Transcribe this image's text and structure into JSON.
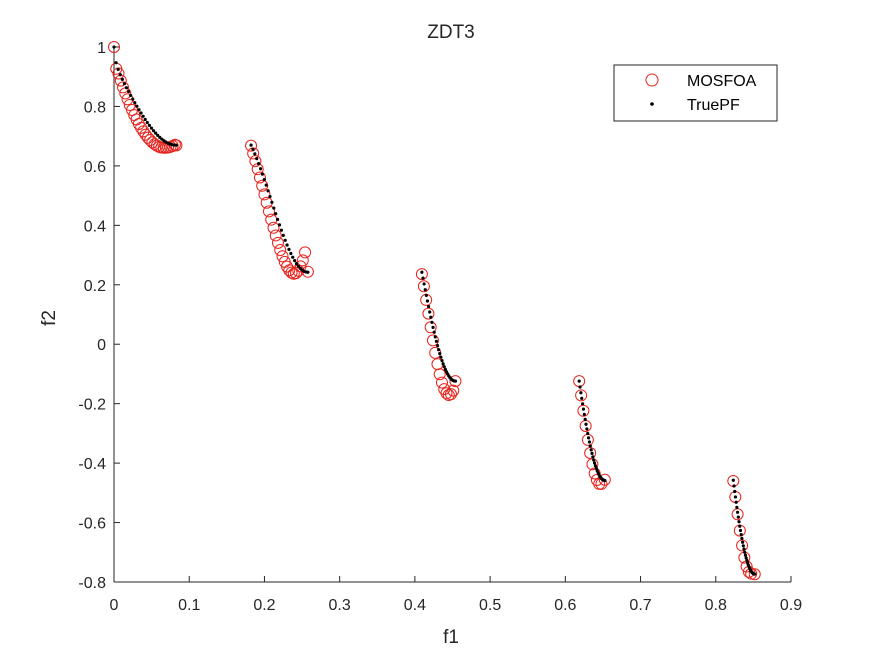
{
  "chart_data": {
    "type": "scatter",
    "title": "ZDT3",
    "xlabel": "f1",
    "ylabel": "f2",
    "xlim": [
      0,
      0.9
    ],
    "ylim": [
      -0.8,
      1
    ],
    "xticks": [
      0,
      0.1,
      0.2,
      0.3,
      0.4,
      0.5,
      0.6,
      0.7,
      0.8,
      0.9
    ],
    "xtick_labels": [
      "0",
      "0.1",
      "0.2",
      "0.3",
      "0.4",
      "0.5",
      "0.6",
      "0.7",
      "0.8",
      "0.9"
    ],
    "yticks": [
      -0.8,
      -0.6,
      -0.4,
      -0.2,
      0,
      0.2,
      0.4,
      0.6,
      0.8,
      1
    ],
    "ytick_labels": [
      "-0.8",
      "-0.6",
      "-0.4",
      "-0.2",
      "0",
      "0.2",
      "0.4",
      "0.6",
      "0.8",
      "1"
    ],
    "grid": false,
    "legend_position": "top-right",
    "segments": [
      [
        0,
        0.083
      ],
      [
        0.1822,
        0.2578
      ],
      [
        0.4093,
        0.4539
      ],
      [
        0.6184,
        0.6525
      ],
      [
        0.8233,
        0.8518
      ]
    ],
    "series": [
      {
        "name": "MOSFOA",
        "marker": "open-circle",
        "color": "#e8221c",
        "x": [
          0,
          0.003,
          0.006,
          0.009,
          0.012,
          0.015,
          0.018,
          0.021,
          0.024,
          0.027,
          0.03,
          0.033,
          0.036,
          0.039,
          0.042,
          0.045,
          0.048,
          0.051,
          0.054,
          0.057,
          0.06,
          0.063,
          0.066,
          0.069,
          0.072,
          0.075,
          0.078,
          0.081,
          0.083,
          0.1822,
          0.185,
          0.188,
          0.191,
          0.194,
          0.197,
          0.2,
          0.203,
          0.206,
          0.209,
          0.212,
          0.215,
          0.218,
          0.221,
          0.224,
          0.227,
          0.23,
          0.233,
          0.236,
          0.239,
          0.242,
          0.245,
          0.248,
          0.251,
          0.254,
          0.2578,
          0.4093,
          0.412,
          0.415,
          0.418,
          0.421,
          0.424,
          0.427,
          0.43,
          0.433,
          0.436,
          0.439,
          0.442,
          0.445,
          0.448,
          0.451,
          0.4539,
          0.6184,
          0.621,
          0.624,
          0.627,
          0.63,
          0.633,
          0.636,
          0.639,
          0.642,
          0.645,
          0.648,
          0.6525,
          0.8233,
          0.826,
          0.829,
          0.832,
          0.835,
          0.838,
          0.841,
          0.844,
          0.847,
          0.8518
        ],
        "y": [
          1.0,
          0.927,
          0.911,
          0.887,
          0.864,
          0.844,
          0.824,
          0.805,
          0.788,
          0.771,
          0.756,
          0.741,
          0.728,
          0.716,
          0.705,
          0.695,
          0.687,
          0.679,
          0.673,
          0.668,
          0.664,
          0.662,
          0.661,
          0.661,
          0.662,
          0.664,
          0.667,
          0.671,
          0.669,
          0.668,
          0.642,
          0.616,
          0.589,
          0.561,
          0.533,
          0.504,
          0.476,
          0.447,
          0.419,
          0.392,
          0.366,
          0.341,
          0.317,
          0.296,
          0.277,
          0.261,
          0.249,
          0.241,
          0.237,
          0.239,
          0.247,
          0.262,
          0.282,
          0.309,
          0.244,
          0.236,
          0.195,
          0.149,
          0.103,
          0.057,
          0.013,
          -0.029,
          -0.067,
          -0.101,
          -0.129,
          -0.151,
          -0.165,
          -0.171,
          -0.168,
          -0.156,
          -0.124,
          -0.124,
          -0.172,
          -0.224,
          -0.275,
          -0.322,
          -0.366,
          -0.404,
          -0.435,
          -0.457,
          -0.47,
          -0.47,
          -0.456,
          -0.46,
          -0.514,
          -0.572,
          -0.627,
          -0.677,
          -0.718,
          -0.748,
          -0.766,
          -0.772,
          -0.774
        ]
      },
      {
        "name": "TruePF",
        "marker": "dot",
        "color": "#000000"
      }
    ]
  }
}
